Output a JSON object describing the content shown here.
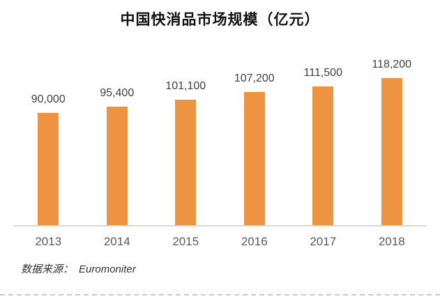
{
  "chart_data": {
    "type": "bar",
    "title": "中国快消品市场规模（亿元）",
    "categories": [
      "2013",
      "2014",
      "2015",
      "2016",
      "2017",
      "2018"
    ],
    "values": [
      90000,
      95400,
      101100,
      107200,
      111500,
      118200
    ],
    "value_labels": [
      "90,000",
      "95,400",
      "101,100",
      "107,200",
      "111,500",
      "118,200"
    ],
    "xlabel": "",
    "ylabel": "",
    "ylim": [
      0,
      130000
    ],
    "grid": false,
    "legend": false,
    "bar_color": "#ED9342",
    "axis_line_color": "#D9D9D9",
    "label_color": "#3F3F3F",
    "tick_label_color": "#595959"
  },
  "footer": {
    "source_label": "数据来源：",
    "source_value": "Euromoniter"
  }
}
